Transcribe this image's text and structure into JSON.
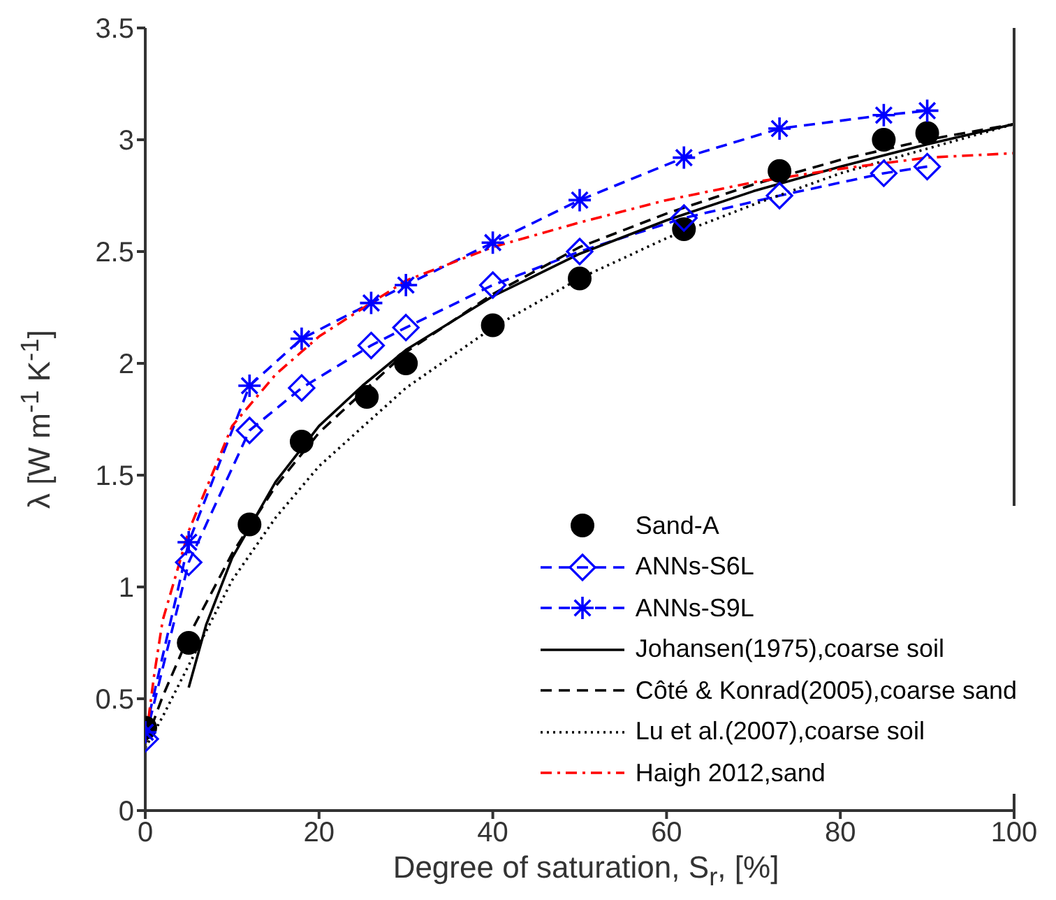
{
  "chart_data": {
    "type": "line",
    "xlabel": "Degree of saturation, S$_{r}$, [%]",
    "ylabel": "λ [W m$^{-1}$ K$^{-1}$]",
    "xlim": [
      0,
      100
    ],
    "xticks": [
      0,
      20,
      40,
      60,
      80,
      100
    ],
    "ylim": [
      0,
      3.5
    ],
    "yticks": [
      0,
      0.5,
      1,
      1.5,
      2,
      2.5,
      3,
      3.5
    ],
    "grid": false,
    "legend": "bottom right",
    "series": [
      {
        "name": "Sand-A",
        "type": "scatter",
        "marker": "circle",
        "color": "#000000",
        "x": [
          0,
          5,
          12,
          18,
          25.5,
          30,
          40,
          50,
          62,
          73,
          85,
          90
        ],
        "values": [
          0.37,
          0.75,
          1.28,
          1.65,
          1.85,
          2.0,
          2.17,
          2.38,
          2.6,
          2.86,
          3.0,
          3.03
        ]
      },
      {
        "name": "ANNs-S6L",
        "marker": "diamond",
        "line_style": "dashed",
        "color": "#0000ff",
        "x": [
          0,
          5,
          12,
          18,
          26,
          30,
          40,
          50,
          62,
          73,
          85,
          90
        ],
        "values": [
          0.32,
          1.11,
          1.7,
          1.89,
          2.08,
          2.16,
          2.35,
          2.5,
          2.65,
          2.75,
          2.85,
          2.88
        ]
      },
      {
        "name": "ANNs-S9L",
        "marker": "cross",
        "line_style": "dashed",
        "color": "#0000ff",
        "x": [
          0,
          5,
          12,
          18,
          26,
          30,
          40,
          50,
          62,
          73,
          85,
          90
        ],
        "values": [
          0.35,
          1.2,
          1.9,
          2.11,
          2.27,
          2.35,
          2.54,
          2.73,
          2.92,
          3.05,
          3.11,
          3.13
        ]
      },
      {
        "name": "Johansen(1975),coarse soil",
        "marker": "none",
        "line_style": "solid",
        "color": "#000000",
        "x": [
          5,
          7,
          10,
          15,
          20,
          25,
          30,
          40,
          50,
          60,
          70,
          80,
          90,
          100
        ],
        "values": [
          0.55,
          0.83,
          1.13,
          1.47,
          1.72,
          1.9,
          2.06,
          2.3,
          2.49,
          2.64,
          2.77,
          2.88,
          2.98,
          3.07
        ]
      },
      {
        "name": "Côté & Konrad(2005),coarse sand",
        "marker": "none",
        "line_style": "dashed",
        "color": "#000000",
        "x": [
          0,
          2,
          5,
          10,
          15,
          20,
          30,
          40,
          50,
          60,
          70,
          80,
          90,
          100
        ],
        "values": [
          0.3,
          0.51,
          0.78,
          1.15,
          1.45,
          1.69,
          2.05,
          2.31,
          2.52,
          2.67,
          2.8,
          2.91,
          3.0,
          3.07
        ]
      },
      {
        "name": "Lu et al.(2007),coarse soil",
        "marker": "none",
        "line_style": "dotted",
        "color": "#000000",
        "x": [
          0,
          2,
          5,
          10,
          15,
          20,
          30,
          40,
          50,
          60,
          70,
          80,
          90,
          100
        ],
        "values": [
          0.28,
          0.42,
          0.65,
          1.03,
          1.31,
          1.54,
          1.89,
          2.16,
          2.38,
          2.56,
          2.71,
          2.85,
          2.96,
          3.07
        ]
      },
      {
        "name": "Haigh 2012,sand",
        "marker": "none",
        "line_style": "dashdot",
        "color": "#ff0000",
        "x": [
          0,
          1,
          2,
          5,
          10,
          15,
          20,
          30,
          40,
          50,
          60,
          70,
          80,
          90,
          100
        ],
        "values": [
          0.3,
          0.6,
          0.85,
          1.25,
          1.72,
          1.95,
          2.12,
          2.37,
          2.52,
          2.63,
          2.73,
          2.81,
          2.87,
          2.92,
          2.94
        ]
      }
    ]
  }
}
